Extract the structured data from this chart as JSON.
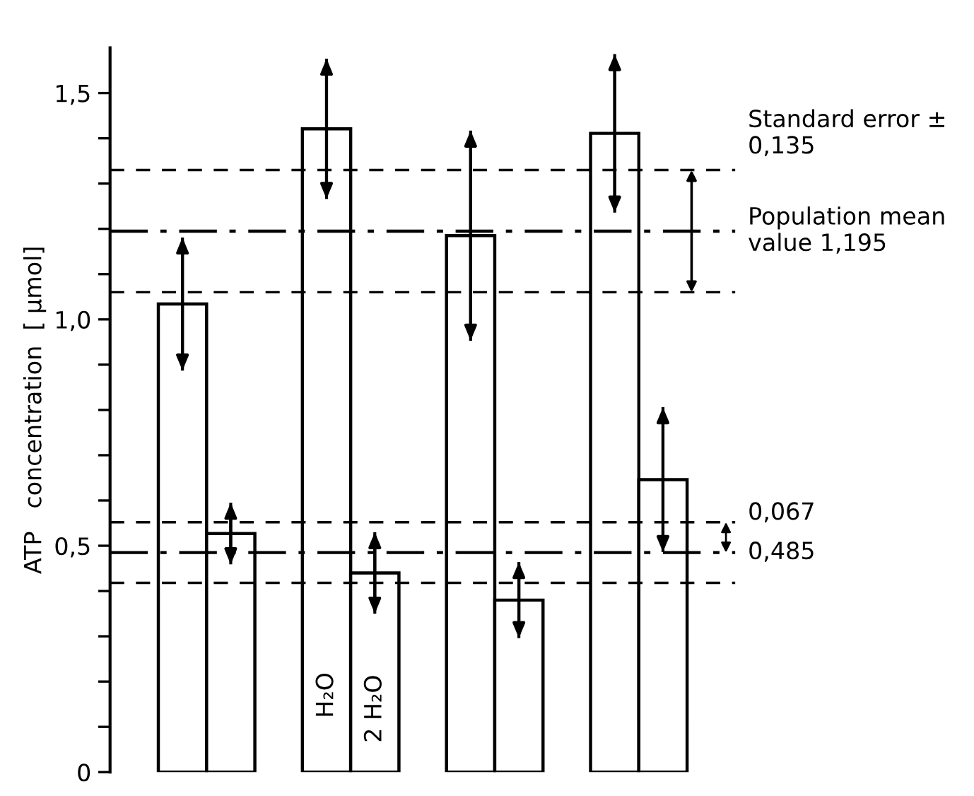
{
  "chart_data": {
    "type": "bar",
    "ylabel": "ATP   concentration  [ μmol]",
    "categories": [
      null,
      null,
      null,
      null
    ],
    "series": [
      {
        "name": "H₂O",
        "color": "#ffffff",
        "values": [
          1.034,
          1.421,
          1.185,
          1.411
        ],
        "errors": [
          0.147,
          0.155,
          0.232,
          0.175
        ]
      },
      {
        "name": "2 H₂O",
        "color": "#ffffff",
        "values": [
          0.527,
          0.44,
          0.38,
          0.646
        ],
        "errors": [
          0.068,
          0.09,
          0.084,
          0.16
        ]
      }
    ],
    "ylim": [
      0,
      1.6
    ],
    "yticks": [
      0,
      {
        "value": 0.1,
        "label": null
      },
      {
        "value": 0.2,
        "label": null
      },
      {
        "value": 0.3,
        "label": null
      },
      {
        "value": 0.4,
        "label": null
      },
      {
        "value": 0.5,
        "label": "0,5"
      },
      {
        "value": 0.6,
        "label": null
      },
      {
        "value": 0.7,
        "label": null
      },
      {
        "value": 0.8,
        "label": null
      },
      {
        "value": 0.9,
        "label": null
      },
      {
        "value": 1.0,
        "label": "1,0"
      },
      {
        "value": 1.1,
        "label": null
      },
      {
        "value": 1.2,
        "label": null
      },
      {
        "value": 1.3,
        "label": null
      },
      {
        "value": 1.4,
        "label": null
      },
      {
        "value": 1.5,
        "label": "1,5"
      }
    ],
    "tick_labels": "y",
    "ref_lines": [
      {
        "axis": "y",
        "value": 1.33,
        "label": null,
        "color": "#000000",
        "line_style": "dashed"
      },
      {
        "axis": "y",
        "value": 1.195,
        "label": "Population mean value 1,195",
        "color": "#000000",
        "line_style": "dashdot"
      },
      {
        "axis": "y",
        "value": 1.06,
        "label": null,
        "color": "#000000",
        "line_style": "dashed"
      },
      {
        "axis": "y",
        "value": 0.552,
        "label": null,
        "color": "#000000",
        "line_style": "dashed"
      },
      {
        "axis": "y",
        "value": 0.485,
        "label": "0,485",
        "color": "#000000",
        "line_style": "dashdot"
      },
      {
        "axis": "y",
        "value": 0.418,
        "label": null,
        "color": "#000000",
        "line_style": "dashed"
      }
    ],
    "annotations": [
      "Standard error ± 0,135",
      "0,067"
    ],
    "grid": false,
    "legend": false
  }
}
